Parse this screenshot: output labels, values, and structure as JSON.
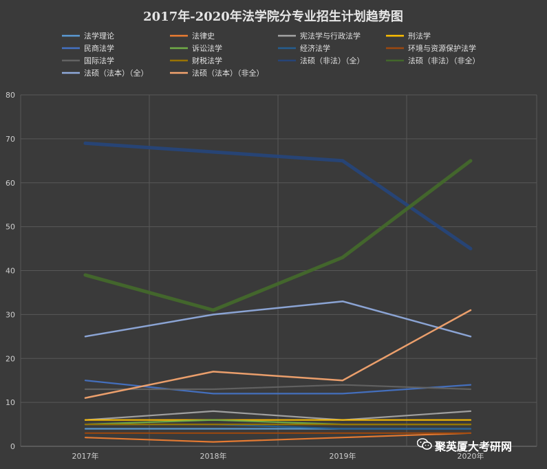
{
  "chart_data": {
    "type": "line",
    "title": "2017年-2020年法学院分专业招生计划趋势图",
    "xlabel": "",
    "ylabel": "",
    "categories": [
      "2017年",
      "2018年",
      "2019年",
      "2020年"
    ],
    "ylim": [
      0,
      80
    ],
    "yticks": [
      0,
      10,
      20,
      30,
      40,
      50,
      60,
      70,
      80
    ],
    "grid": true,
    "legend_position": "top",
    "series": [
      {
        "name": "法学理论",
        "color": "#5b9bd5",
        "values": [
          4,
          4,
          4,
          4
        ]
      },
      {
        "name": "法律史",
        "color": "#ed7d31",
        "values": [
          2,
          1,
          2,
          3
        ]
      },
      {
        "name": "宪法学与行政法学",
        "color": "#a5a5a5",
        "values": [
          6,
          8,
          6,
          8
        ]
      },
      {
        "name": "刑法学",
        "color": "#ffc000",
        "values": [
          6,
          6,
          6,
          6
        ]
      },
      {
        "name": "民商法学",
        "color": "#4472c4",
        "values": [
          15,
          12,
          12,
          14
        ]
      },
      {
        "name": "诉讼法学",
        "color": "#70ad47",
        "values": [
          5,
          6,
          5,
          5
        ]
      },
      {
        "name": "经济法学",
        "color": "#255e91",
        "values": [
          5,
          5,
          4,
          4
        ]
      },
      {
        "name": "环境与资源保护法学",
        "color": "#9e480e",
        "values": [
          3,
          3,
          3,
          3
        ]
      },
      {
        "name": "国际法学",
        "color": "#636363",
        "values": [
          13,
          13,
          14,
          13
        ]
      },
      {
        "name": "财税法学",
        "color": "#997300",
        "values": [
          5,
          5,
          5,
          5
        ]
      },
      {
        "name": "法硕（非法）（全）",
        "color": "#264478",
        "values": [
          69,
          67,
          65,
          45
        ]
      },
      {
        "name": "法硕（非法）（非全）",
        "color": "#43682b",
        "values": [
          39,
          31,
          43,
          65
        ]
      },
      {
        "name": "法硕（法本）（全）",
        "color": "#8faadc",
        "values": [
          25,
          30,
          33,
          25
        ]
      },
      {
        "name": "法硕（法本）（非全）",
        "color": "#f4a46f",
        "values": [
          11,
          17,
          15,
          31
        ]
      }
    ]
  },
  "watermark": {
    "text": "聚英厦大考研网",
    "icon": "wechat-icon"
  }
}
